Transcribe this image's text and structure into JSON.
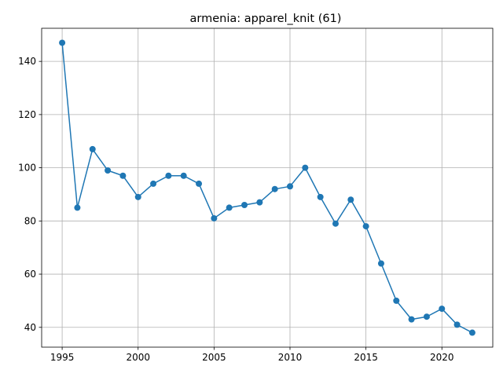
{
  "chart_data": {
    "type": "line",
    "title": "armenia: apparel_knit (61)",
    "xlabel": "",
    "ylabel": "",
    "x": [
      1995,
      1996,
      1997,
      1998,
      1999,
      2000,
      2001,
      2002,
      2003,
      2004,
      2005,
      2006,
      2007,
      2008,
      2009,
      2010,
      2011,
      2012,
      2013,
      2014,
      2015,
      2016,
      2017,
      2018,
      2019,
      2020,
      2021,
      2022
    ],
    "series": [
      {
        "values": [
          147,
          85,
          107,
          99,
          97,
          89,
          94,
          97,
          97,
          94,
          81,
          85,
          86,
          87,
          92,
          93,
          100,
          89,
          79,
          88,
          78,
          64,
          50,
          43,
          44,
          47,
          41,
          38
        ],
        "color": "#1f77b4",
        "marker": "circle"
      }
    ],
    "xlim": [
      1993.65,
      2023.35
    ],
    "ylim": [
      32.55,
      152.45
    ],
    "xticks": [
      1995,
      2000,
      2005,
      2010,
      2015,
      2020
    ],
    "yticks": [
      40,
      60,
      80,
      100,
      120,
      140
    ],
    "grid": true,
    "legend": "none"
  }
}
